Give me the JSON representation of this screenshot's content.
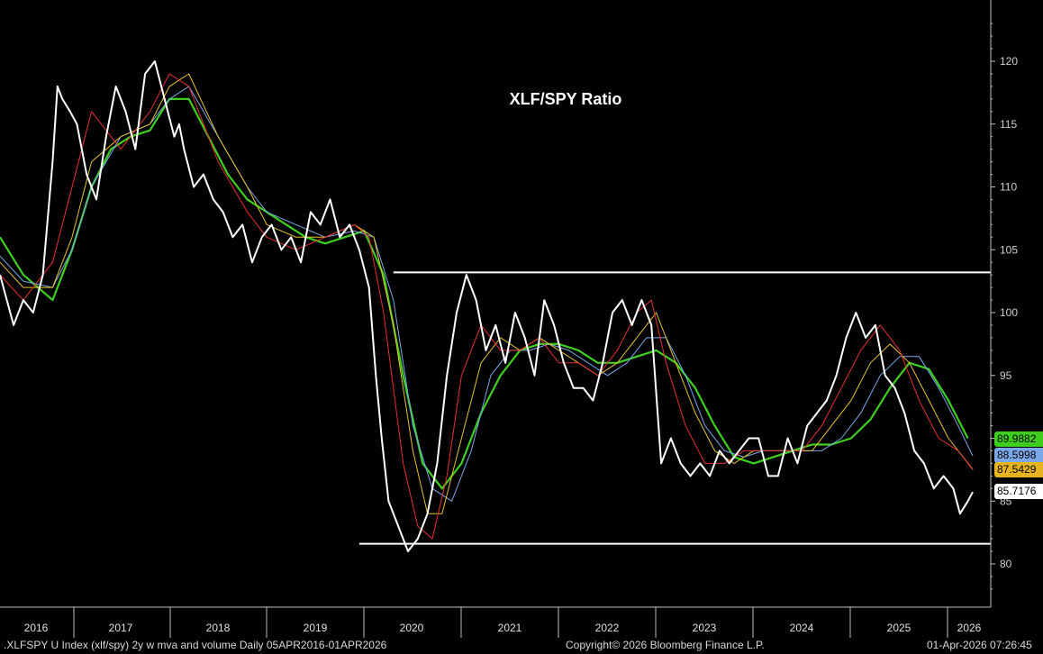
{
  "chart_data": {
    "type": "line",
    "title": "XLF/SPY Ratio",
    "ylim": [
      77,
      124
    ],
    "yticks": [
      80,
      85,
      90,
      95,
      100,
      105,
      110,
      115,
      120
    ],
    "ytick_labels": [
      "80",
      "85",
      "90",
      "95",
      "100",
      "105",
      "110",
      "115",
      "120"
    ],
    "year_labels": [
      "2016",
      "2017",
      "2018",
      "2019",
      "2020",
      "2021",
      "2022",
      "2023",
      "2024",
      "2025",
      "2026"
    ],
    "x_range": [
      2016.26,
      2026.25
    ],
    "grid": false,
    "series": [
      {
        "color": "#ffffff",
        "x": [
          2016.26,
          2016.4,
          2016.5,
          2016.6,
          2016.7,
          2016.8,
          2016.85,
          2016.9,
          2016.98,
          2017.05,
          2017.15,
          2017.25,
          2017.35,
          2017.45,
          2017.55,
          2017.65,
          2017.75,
          2017.85,
          2017.95,
          2018.05,
          2018.1,
          2018.15,
          2018.25,
          2018.35,
          2018.45,
          2018.55,
          2018.65,
          2018.75,
          2018.85,
          2018.95,
          2019.05,
          2019.15,
          2019.25,
          2019.35,
          2019.45,
          2019.55,
          2019.65,
          2019.75,
          2019.85,
          2019.95,
          2020.05,
          2020.12,
          2020.18,
          2020.25,
          2020.35,
          2020.45,
          2020.55,
          2020.65,
          2020.75,
          2020.85,
          2020.95,
          2021.05,
          2021.1,
          2021.15,
          2021.25,
          2021.35,
          2021.45,
          2021.55,
          2021.65,
          2021.75,
          2021.85,
          2021.95,
          2022.05,
          2022.15,
          2022.25,
          2022.35,
          2022.45,
          2022.55,
          2022.65,
          2022.75,
          2022.85,
          2022.95,
          2023.05,
          2023.1,
          2023.15,
          2023.25,
          2023.35,
          2023.45,
          2023.55,
          2023.65,
          2023.75,
          2023.85,
          2023.95,
          2024.05,
          2024.15,
          2024.25,
          2024.35,
          2024.45,
          2024.55,
          2024.65,
          2024.75,
          2024.85,
          2024.95,
          2025.05,
          2025.15,
          2025.25,
          2025.35,
          2025.45,
          2025.55,
          2025.65,
          2025.75,
          2025.85,
          2025.95,
          2026.05,
          2026.12,
          2026.2,
          2026.25
        ],
        "values": [
          103,
          99,
          101,
          100,
          103,
          112,
          118,
          117,
          116,
          115,
          111,
          109,
          114,
          118,
          116,
          113,
          119,
          120,
          117,
          114,
          115,
          113,
          110,
          111,
          109,
          108,
          106,
          107,
          104,
          106,
          107,
          105,
          106,
          104,
          108,
          107,
          109,
          106,
          107,
          105,
          102,
          95,
          90,
          85,
          83,
          81,
          82,
          84,
          88,
          95,
          100,
          103,
          102,
          101,
          97,
          99,
          96,
          100,
          98,
          95,
          101,
          99,
          96,
          94,
          94,
          93,
          96,
          100,
          101,
          99,
          101,
          99,
          88,
          89,
          90,
          88,
          87,
          88,
          87,
          89,
          88,
          89,
          90,
          90,
          87,
          87,
          90,
          88,
          91,
          92,
          93,
          95,
          98,
          100,
          98,
          99,
          95,
          94,
          92,
          89,
          88,
          86,
          87,
          86,
          84,
          85,
          85.72
        ]
      },
      {
        "color": "#e53030",
        "x": [
          2016.26,
          2016.5,
          2016.8,
          2017.0,
          2017.2,
          2017.5,
          2017.8,
          2018.0,
          2018.2,
          2018.5,
          2018.8,
          2019.0,
          2019.3,
          2019.6,
          2019.9,
          2020.05,
          2020.2,
          2020.4,
          2020.55,
          2020.7,
          2020.85,
          2021.0,
          2021.2,
          2021.4,
          2021.6,
          2021.8,
          2022.0,
          2022.2,
          2022.4,
          2022.6,
          2022.8,
          2022.95,
          2023.1,
          2023.3,
          2023.5,
          2023.7,
          2023.9,
          2024.1,
          2024.3,
          2024.5,
          2024.7,
          2024.9,
          2025.1,
          2025.3,
          2025.5,
          2025.7,
          2025.9,
          2026.1,
          2026.25
        ],
        "values": [
          103,
          101,
          104,
          110,
          116,
          113,
          116,
          119,
          118,
          112,
          108,
          106,
          105,
          106,
          107,
          106,
          100,
          88,
          83,
          82,
          87,
          95,
          99,
          97,
          97,
          98,
          96,
          96,
          95,
          97,
          100,
          101,
          96,
          91,
          88,
          88,
          89,
          89,
          89,
          89,
          91,
          94,
          97,
          99,
          97,
          93,
          90,
          89,
          87.5
        ]
      },
      {
        "color": "#e6c42a",
        "x": [
          2016.26,
          2016.5,
          2016.8,
          2017.0,
          2017.2,
          2017.5,
          2017.8,
          2018.0,
          2018.2,
          2018.5,
          2018.8,
          2019.0,
          2019.3,
          2019.6,
          2019.9,
          2020.1,
          2020.3,
          2020.5,
          2020.65,
          2020.8,
          2021.0,
          2021.2,
          2021.4,
          2021.6,
          2021.8,
          2022.0,
          2022.2,
          2022.4,
          2022.6,
          2022.8,
          2023.0,
          2023.2,
          2023.4,
          2023.6,
          2023.8,
          2024.0,
          2024.2,
          2024.4,
          2024.6,
          2024.8,
          2025.0,
          2025.2,
          2025.4,
          2025.6,
          2025.8,
          2026.0,
          2026.25
        ],
        "values": [
          104,
          102,
          102,
          106,
          112,
          114,
          115,
          118,
          119,
          114,
          110,
          107,
          106,
          106,
          107,
          106,
          99,
          89,
          84,
          84,
          90,
          96,
          98,
          97,
          98,
          97,
          96,
          95,
          96,
          98,
          100,
          96,
          92,
          89,
          88,
          89,
          89,
          89,
          89,
          91,
          93,
          96,
          97.5,
          96,
          93,
          90,
          87.54
        ]
      },
      {
        "color": "#7aa8e8",
        "x": [
          2016.26,
          2016.5,
          2016.8,
          2017.0,
          2017.2,
          2017.5,
          2017.8,
          2018.0,
          2018.2,
          2018.5,
          2018.8,
          2019.0,
          2019.3,
          2019.6,
          2019.9,
          2020.1,
          2020.3,
          2020.5,
          2020.7,
          2020.9,
          2021.1,
          2021.3,
          2021.5,
          2021.7,
          2021.9,
          2022.1,
          2022.3,
          2022.5,
          2022.7,
          2022.9,
          2023.1,
          2023.3,
          2023.5,
          2023.7,
          2023.9,
          2024.1,
          2024.3,
          2024.5,
          2024.7,
          2024.9,
          2025.1,
          2025.3,
          2025.5,
          2025.7,
          2025.9,
          2026.1,
          2026.25
        ],
        "values": [
          104.5,
          102.5,
          102,
          105,
          110,
          114,
          115,
          117,
          118,
          114,
          110,
          108,
          107,
          106,
          106.5,
          106,
          101,
          91,
          86,
          85,
          89,
          95,
          97,
          97,
          97.5,
          97,
          96,
          95,
          96,
          98,
          98,
          95,
          91,
          89,
          88.5,
          89,
          89,
          89,
          89,
          90,
          92,
          95,
          96.5,
          96.5,
          94,
          91,
          88.6
        ]
      },
      {
        "color": "#3ecf1e",
        "x": [
          2016.26,
          2016.5,
          2016.8,
          2017.0,
          2017.2,
          2017.4,
          2017.6,
          2017.8,
          2018.0,
          2018.2,
          2018.4,
          2018.6,
          2018.8,
          2019.0,
          2019.2,
          2019.4,
          2019.6,
          2019.8,
          2020.0,
          2020.2,
          2020.4,
          2020.6,
          2020.8,
          2021.0,
          2021.2,
          2021.4,
          2021.6,
          2021.8,
          2022.0,
          2022.2,
          2022.4,
          2022.6,
          2022.8,
          2023.0,
          2023.2,
          2023.4,
          2023.6,
          2023.8,
          2024.0,
          2024.2,
          2024.4,
          2024.6,
          2024.8,
          2025.0,
          2025.2,
          2025.4,
          2025.6,
          2025.8,
          2026.0,
          2026.2
        ],
        "values": [
          106,
          103,
          101,
          105,
          110,
          113,
          114,
          114.5,
          117,
          117,
          114,
          111,
          109,
          108,
          107,
          106,
          105.5,
          106,
          106.5,
          103,
          95,
          88,
          86,
          88,
          92,
          95,
          97,
          97.5,
          97.5,
          97,
          96,
          96,
          96.5,
          97,
          96,
          94,
          91,
          88.5,
          88,
          88.5,
          89,
          89.5,
          89.5,
          90,
          91.5,
          94,
          96,
          95.5,
          93,
          89.99
        ]
      }
    ],
    "horizontal_lines": [
      {
        "y": 103.2,
        "x_start": 2020.3,
        "x_end": 2026.25
      },
      {
        "y": 81.6,
        "x_start": 2019.95,
        "x_end": 2026.25
      }
    ],
    "value_badges": [
      {
        "label": "89.9882",
        "value": 89.9882,
        "color": "#3ecf1e"
      },
      {
        "label": "88.5998",
        "value": 88.5998,
        "color": "#7aa8e8"
      },
      {
        "label": "87.5429",
        "value": 87.5429,
        "color": "#e6b41e"
      },
      {
        "label": "85.7176",
        "value": 85.7176,
        "color": "#ffffff"
      }
    ]
  },
  "footer": {
    "left": ".XLFSPY U Index (xlf/spy) 2y w mva and volume Daily 05APR2016-01APR2026",
    "center": "Copyright© 2026 Bloomberg Finance L.P.",
    "right": "01-Apr-2026 07:26:45"
  },
  "colors": {
    "background": "#000000",
    "axis": "#bfbfbf"
  }
}
